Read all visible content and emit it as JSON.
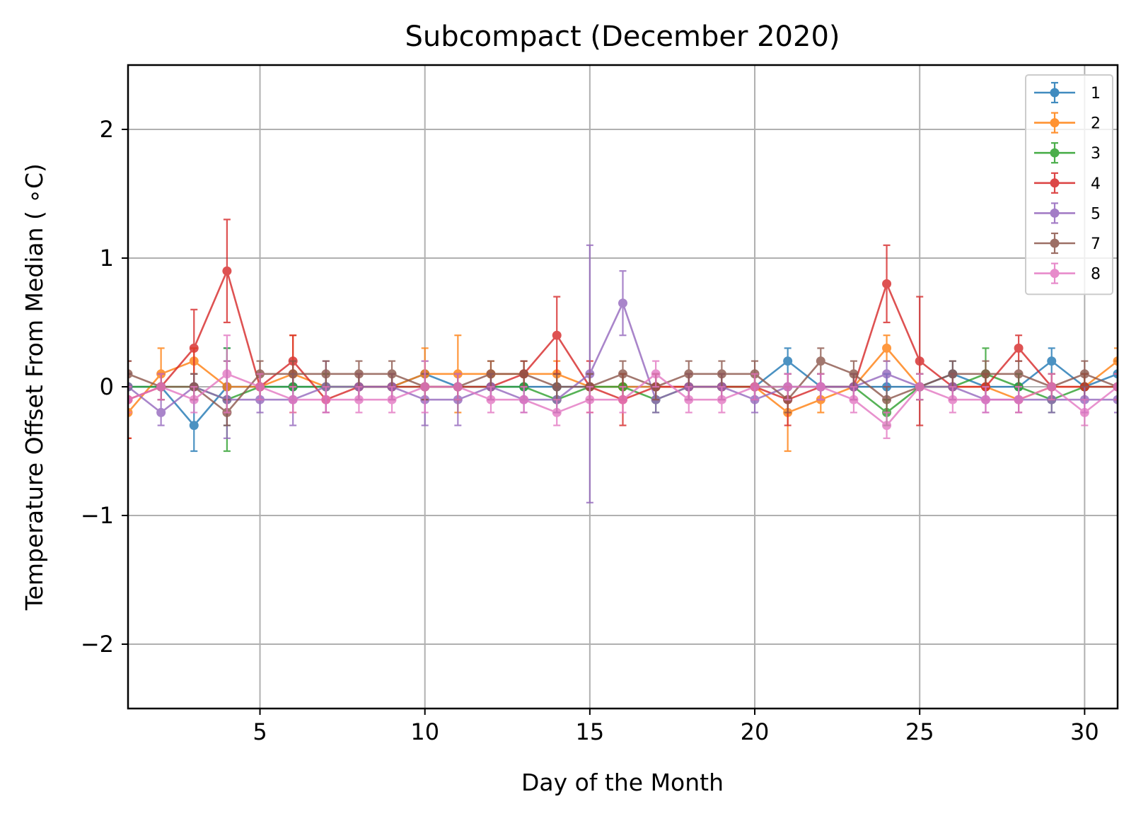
{
  "chart_data": {
    "type": "line",
    "title": "Subcompact (December 2020)",
    "xlabel": "Day of the Month",
    "ylabel": "Temperature Offset From Median ( ∘C)",
    "xlim": [
      1,
      31
    ],
    "ylim": [
      -2.5,
      2.5
    ],
    "x_ticks": [
      5,
      10,
      15,
      20,
      25,
      30
    ],
    "y_ticks": [
      -2,
      -1,
      0,
      1,
      2
    ],
    "y_tick_labels": [
      "−2",
      "−1",
      "0",
      "1",
      "2"
    ],
    "grid": true,
    "legend_position": "top-right",
    "error_bars": true,
    "x": [
      1,
      2,
      3,
      4,
      5,
      6,
      7,
      8,
      9,
      10,
      11,
      12,
      13,
      14,
      15,
      16,
      17,
      18,
      19,
      20,
      21,
      22,
      23,
      24,
      25,
      26,
      27,
      28,
      29,
      30,
      31
    ],
    "series": [
      {
        "name": "1",
        "color": "#1f77b4",
        "values": [
          0,
          0,
          -0.3,
          0,
          0,
          0,
          0,
          0,
          0,
          0.1,
          0,
          0,
          0,
          0,
          0,
          0,
          0,
          0,
          0,
          0,
          0.2,
          0,
          0,
          0,
          0,
          0.1,
          0,
          0,
          0.2,
          0,
          0.1
        ],
        "errors": [
          0.1,
          0.1,
          0.2,
          0.3,
          0.1,
          0.1,
          0.1,
          0.1,
          0.1,
          0.1,
          0.1,
          0.1,
          0.1,
          0.1,
          0.1,
          0.1,
          0.1,
          0.1,
          0.1,
          0.1,
          0.1,
          0.1,
          0.1,
          0.1,
          0.1,
          0.1,
          0.1,
          0.1,
          0.1,
          0.1,
          0.1
        ]
      },
      {
        "name": "2",
        "color": "#ff7f0e",
        "values": [
          -0.2,
          0.1,
          0.2,
          0,
          0,
          0.1,
          0,
          0,
          0,
          0.1,
          0.1,
          0.1,
          0.1,
          0.1,
          0,
          0,
          0,
          0,
          0,
          0,
          -0.2,
          -0.1,
          0,
          0.3,
          0,
          0,
          0,
          -0.1,
          0,
          0,
          0.2
        ],
        "errors": [
          0.2,
          0.2,
          0.1,
          0.2,
          0.1,
          0.3,
          0.1,
          0.1,
          0.1,
          0.2,
          0.3,
          0.1,
          0.1,
          0.1,
          0.1,
          0.1,
          0.1,
          0.1,
          0.1,
          0.1,
          0.3,
          0.1,
          0.1,
          0.1,
          0.1,
          0.1,
          0.1,
          0.1,
          0.1,
          0.1,
          0.1
        ]
      },
      {
        "name": "3",
        "color": "#2ca02c",
        "values": [
          0,
          0,
          0,
          -0.1,
          0,
          0,
          0,
          0,
          0,
          0,
          0,
          0,
          0,
          -0.1,
          0,
          0,
          -0.1,
          0,
          0,
          0,
          0,
          0,
          0,
          -0.2,
          0,
          0,
          0.1,
          0,
          -0.1,
          0,
          0
        ],
        "errors": [
          0.1,
          0.1,
          0.1,
          0.4,
          0.1,
          0.1,
          0.1,
          0.1,
          0.1,
          0.1,
          0.1,
          0.1,
          0.1,
          0.1,
          0.1,
          0.1,
          0.1,
          0.1,
          0.1,
          0.1,
          0.1,
          0.1,
          0.1,
          0.1,
          0.1,
          0.1,
          0.2,
          0.1,
          0.1,
          0.1,
          0.1
        ]
      },
      {
        "name": "4",
        "color": "#d62728",
        "values": [
          -0.1,
          0,
          0.3,
          0.9,
          0,
          0.2,
          -0.1,
          0,
          0,
          0,
          0,
          0,
          0.1,
          0.4,
          0,
          -0.1,
          0,
          0,
          0,
          0,
          -0.1,
          0,
          0,
          0.8,
          0.2,
          0,
          0,
          0.3,
          0,
          0,
          0
        ],
        "errors": [
          0.3,
          0.1,
          0.3,
          0.4,
          0.1,
          0.2,
          0.1,
          0.1,
          0.1,
          0.1,
          0.1,
          0.1,
          0.1,
          0.3,
          0.2,
          0.2,
          0.1,
          0.1,
          0.1,
          0.1,
          0.2,
          0.1,
          0.1,
          0.3,
          0.5,
          0.1,
          0.1,
          0.1,
          0.1,
          0.1,
          0.1
        ]
      },
      {
        "name": "5",
        "color": "#9467bd",
        "values": [
          0,
          -0.2,
          0,
          -0.1,
          -0.1,
          -0.1,
          0,
          0,
          0,
          -0.1,
          -0.1,
          0,
          -0.1,
          -0.1,
          0.1,
          0.65,
          -0.1,
          0,
          0,
          -0.1,
          0,
          0,
          0,
          0.1,
          0,
          0,
          -0.1,
          -0.1,
          -0.1,
          -0.1,
          -0.1
        ],
        "errors": [
          0.1,
          0.1,
          0.1,
          0.3,
          0.1,
          0.2,
          0.2,
          0.1,
          0.1,
          0.2,
          0.2,
          0.1,
          0.1,
          0.1,
          1.0,
          0.25,
          0.1,
          0.1,
          0.1,
          0.1,
          0.1,
          0.1,
          0.1,
          0.1,
          0.1,
          0.1,
          0.1,
          0.1,
          0.1,
          0.1,
          0.1
        ]
      },
      {
        "name": "7",
        "color": "#8c564b",
        "values": [
          0.1,
          0,
          0,
          -0.2,
          0.1,
          0.1,
          0.1,
          0.1,
          0.1,
          0,
          0,
          0.1,
          0.1,
          0,
          0,
          0.1,
          0,
          0.1,
          0.1,
          0.1,
          -0.1,
          0.2,
          0.1,
          -0.1,
          0,
          0.1,
          0.1,
          0.1,
          0,
          0.1,
          0
        ],
        "errors": [
          0.1,
          0.1,
          0.1,
          0.1,
          0.1,
          0.1,
          0.1,
          0.1,
          0.1,
          0.1,
          0.1,
          0.1,
          0.1,
          0.1,
          0.1,
          0.1,
          0.1,
          0.1,
          0.1,
          0.1,
          0.1,
          0.1,
          0.1,
          0.1,
          0.1,
          0.1,
          0.1,
          0.1,
          0.1,
          0.1,
          0.1
        ]
      },
      {
        "name": "8",
        "color": "#e377c2",
        "values": [
          -0.1,
          0,
          -0.1,
          0.1,
          0,
          -0.1,
          -0.1,
          -0.1,
          -0.1,
          0,
          0,
          -0.1,
          -0.1,
          -0.2,
          -0.1,
          -0.1,
          0.1,
          -0.1,
          -0.1,
          0,
          0,
          0,
          -0.1,
          -0.3,
          0,
          -0.1,
          -0.1,
          -0.1,
          0,
          -0.2,
          0
        ],
        "errors": [
          0.1,
          0.1,
          0.1,
          0.3,
          0.1,
          0.1,
          0.1,
          0.1,
          0.1,
          0.2,
          0.1,
          0.1,
          0.1,
          0.1,
          0.1,
          0.1,
          0.1,
          0.1,
          0.1,
          0.1,
          0.1,
          0.1,
          0.1,
          0.1,
          0.1,
          0.1,
          0.1,
          0.1,
          0.1,
          0.1,
          0.1
        ]
      }
    ]
  }
}
